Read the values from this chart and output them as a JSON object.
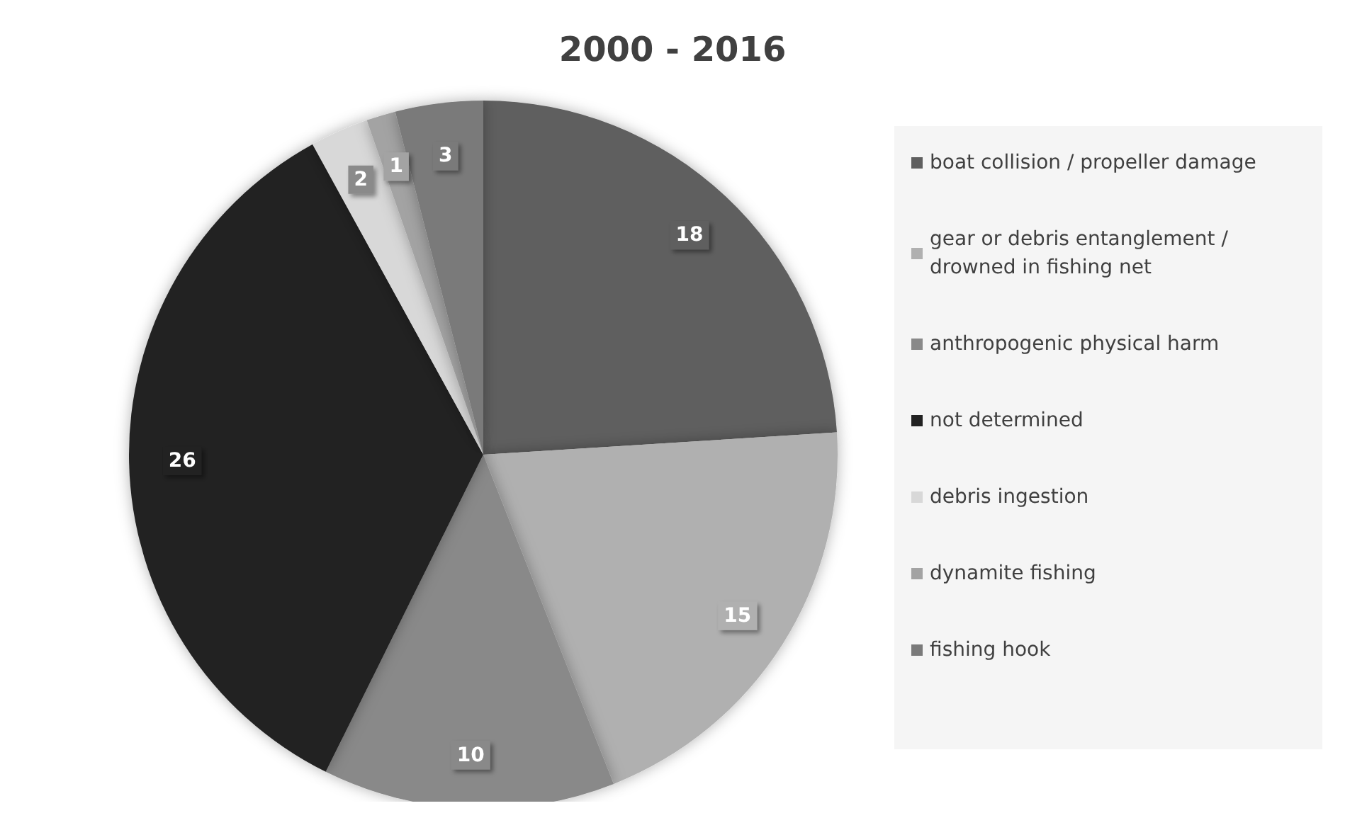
{
  "chart_data": {
    "type": "pie",
    "title": "2000 - 2016",
    "categories": [
      "boat collision / propeller damage",
      "gear or debris entanglement / drowned in fishing net",
      "anthropogenic physical harm",
      "not determined",
      "debris ingestion",
      "dynamite fishing",
      "fishing hook"
    ],
    "values": [
      18,
      15,
      10,
      26,
      2,
      1,
      3
    ],
    "colors": [
      "#5f5f5f",
      "#b0b0b0",
      "#898989",
      "#222222",
      "#d8d8d8",
      "#a3a3a3",
      "#7a7a7a"
    ],
    "data_labels": true,
    "legend": "right"
  }
}
